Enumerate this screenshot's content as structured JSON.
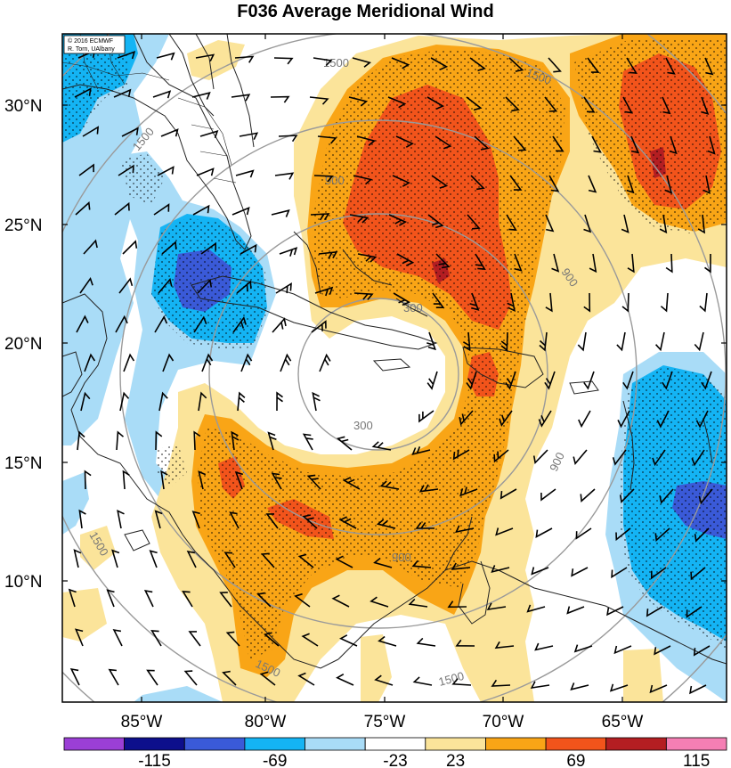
{
  "title": "F036 Average Meridional Wind",
  "credit_lines": [
    "© 2016 ECMWF",
    "R. Torn, UAlbany"
  ],
  "lat_labels": [
    "30°N",
    "25°N",
    "20°N",
    "15°N",
    "10°N"
  ],
  "lon_labels": [
    "85°W",
    "80°W",
    "75°W",
    "70°W",
    "65°W"
  ],
  "ring_labels": [
    "1500",
    "1500",
    "1500",
    "900",
    "900",
    "900",
    "300",
    "300",
    "900",
    "1500",
    "1500",
    "1500"
  ],
  "colorbar": {
    "colors": [
      "#9b3fd6",
      "#0d0f8c",
      "#3a5ad8",
      "#14b4f4",
      "#a9dcf7",
      "#ffffff",
      "#fbe49a",
      "#f9a516",
      "#f2541b",
      "#b41e22",
      "#f57fb4"
    ],
    "tick_labels": [
      "-115",
      "-69",
      "-23",
      "23",
      "69",
      "115"
    ]
  },
  "colors": {
    "strong_positive": "#f2541b",
    "positive": "#f9a516",
    "weak_positive": "#fbe49a",
    "weak_negative": "#a9dcf7",
    "negative": "#14b4f4",
    "strong_negative": "#3a5ad8",
    "range_rings": "#9a9a9a"
  }
}
